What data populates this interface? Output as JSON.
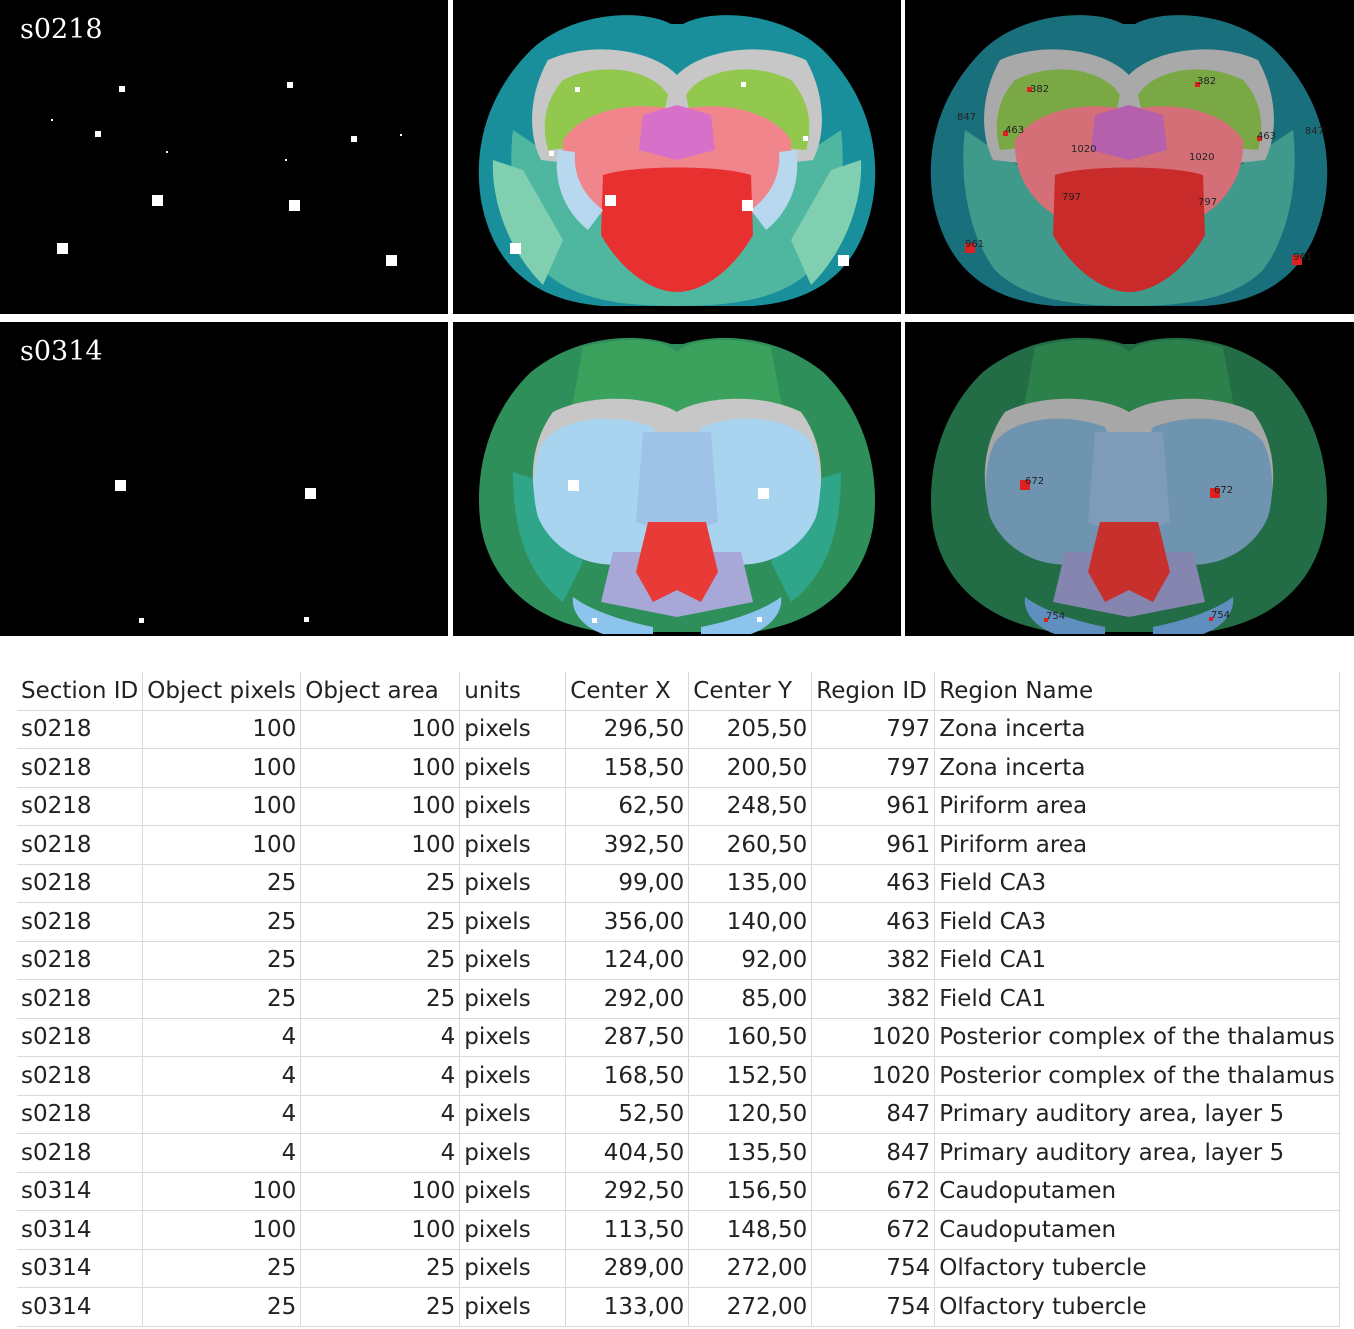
{
  "sections": [
    {
      "id": "s0218",
      "overlay_labels": [
        "382",
        "382",
        "847",
        "847",
        "463",
        "463",
        "1020",
        "1020",
        "797",
        "797",
        "961",
        "961"
      ]
    },
    {
      "id": "s0314",
      "overlay_labels": [
        "672",
        "672",
        "754",
        "754"
      ]
    }
  ],
  "table": {
    "headers": [
      "Section ID",
      "Object pixels",
      "Object area",
      "units",
      "Center X",
      "Center Y",
      "Region ID",
      "Region Name"
    ],
    "rows": [
      [
        "s0218",
        "100",
        "100",
        "pixels",
        "296,50",
        "205,50",
        "797",
        "Zona incerta"
      ],
      [
        "s0218",
        "100",
        "100",
        "pixels",
        "158,50",
        "200,50",
        "797",
        "Zona incerta"
      ],
      [
        "s0218",
        "100",
        "100",
        "pixels",
        "62,50",
        "248,50",
        "961",
        "Piriform area"
      ],
      [
        "s0218",
        "100",
        "100",
        "pixels",
        "392,50",
        "260,50",
        "961",
        "Piriform area"
      ],
      [
        "s0218",
        "25",
        "25",
        "pixels",
        "99,00",
        "135,00",
        "463",
        "Field CA3"
      ],
      [
        "s0218",
        "25",
        "25",
        "pixels",
        "356,00",
        "140,00",
        "463",
        "Field CA3"
      ],
      [
        "s0218",
        "25",
        "25",
        "pixels",
        "124,00",
        "92,00",
        "382",
        "Field CA1"
      ],
      [
        "s0218",
        "25",
        "25",
        "pixels",
        "292,00",
        "85,00",
        "382",
        "Field CA1"
      ],
      [
        "s0218",
        "4",
        "4",
        "pixels",
        "287,50",
        "160,50",
        "1020",
        "Posterior complex of the thalamus"
      ],
      [
        "s0218",
        "4",
        "4",
        "pixels",
        "168,50",
        "152,50",
        "1020",
        "Posterior complex of the thalamus"
      ],
      [
        "s0218",
        "4",
        "4",
        "pixels",
        "52,50",
        "120,50",
        "847",
        "Primary auditory area, layer 5"
      ],
      [
        "s0218",
        "4",
        "4",
        "pixels",
        "404,50",
        "135,50",
        "847",
        "Primary auditory area, layer 5"
      ],
      [
        "s0314",
        "100",
        "100",
        "pixels",
        "292,50",
        "156,50",
        "672",
        "Caudoputamen"
      ],
      [
        "s0314",
        "100",
        "100",
        "pixels",
        "113,50",
        "148,50",
        "672",
        "Caudoputamen"
      ],
      [
        "s0314",
        "25",
        "25",
        "pixels",
        "289,00",
        "272,00",
        "754",
        "Olfactory tubercle"
      ],
      [
        "s0314",
        "25",
        "25",
        "pixels",
        "133,00",
        "272,00",
        "754",
        "Olfactory tubercle"
      ]
    ]
  },
  "colors": {
    "panel_background": "#000000",
    "object_marker": "#ffffff",
    "region_marker": "#e02020",
    "hippocampus_green": "#8fc44a",
    "thalamus_red": "#f07c84",
    "hypothalamus_red": "#e8302e",
    "cortex_teal": "#1f9c9c",
    "striatum_blue": "#a8d6f0",
    "cortex_green": "#2f8f5a"
  }
}
